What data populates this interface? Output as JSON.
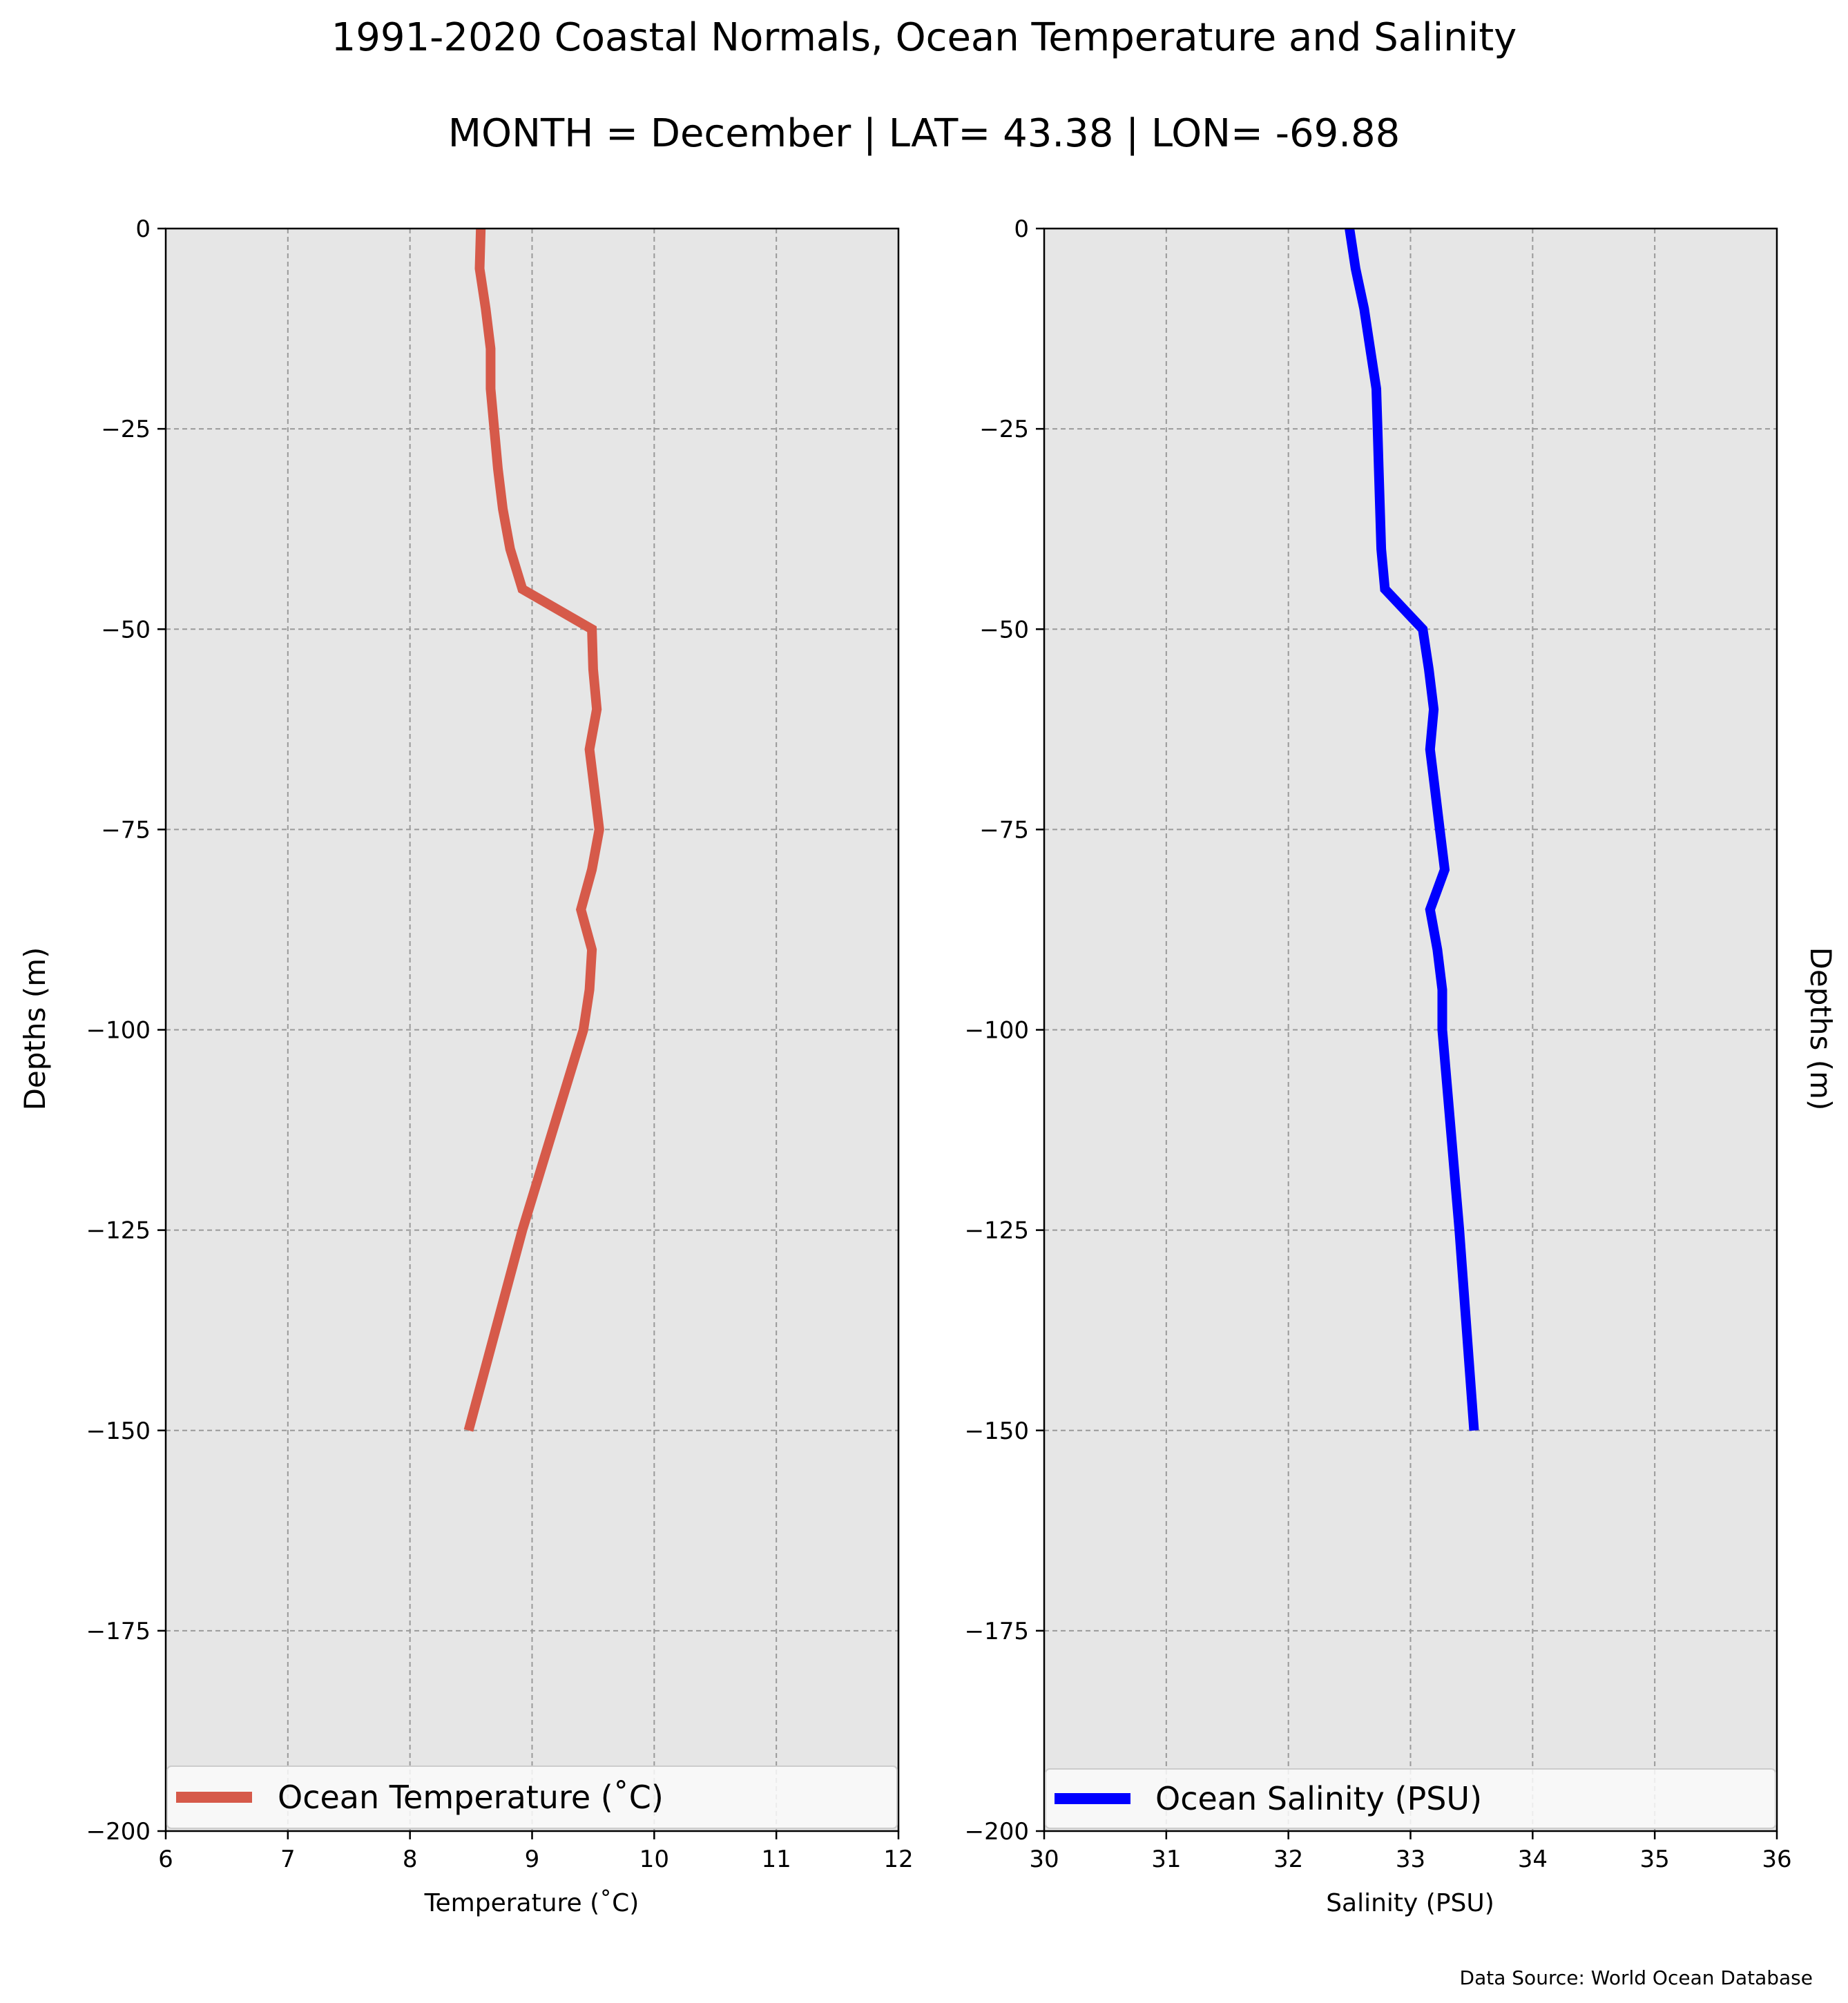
{
  "figure": {
    "title": "1991-2020 Coastal Normals, Ocean Temperature and Salinity",
    "subtitle": "MONTH = December | LAT= 43.38 | LON= -69.88",
    "source": "Data Source: World Ocean Database",
    "right_ylabel": "Depths (m)"
  },
  "chart_data": [
    {
      "type": "line",
      "xlabel": "Temperature (˚C)",
      "ylabel": "Depths (m)",
      "xlim": [
        6,
        12
      ],
      "ylim": [
        -200,
        0
      ],
      "xticks": [
        "6",
        "7",
        "8",
        "9",
        "10",
        "11",
        "12"
      ],
      "yticks": [
        "0",
        "−25",
        "−50",
        "−75",
        "−100",
        "−125",
        "−150",
        "−175",
        "−200"
      ],
      "grid": true,
      "legend": "lower-center",
      "series": [
        {
          "name": "Ocean Temperature (˚C)",
          "color": "#d65a4a",
          "points": [
            [
              8.58,
              0
            ],
            [
              8.57,
              -5
            ],
            [
              8.62,
              -10
            ],
            [
              8.66,
              -15
            ],
            [
              8.66,
              -20
            ],
            [
              8.69,
              -25
            ],
            [
              8.72,
              -30
            ],
            [
              8.76,
              -35
            ],
            [
              8.82,
              -40
            ],
            [
              8.92,
              -45
            ],
            [
              9.49,
              -50
            ],
            [
              9.5,
              -55
            ],
            [
              9.53,
              -60
            ],
            [
              9.47,
              -65
            ],
            [
              9.51,
              -70
            ],
            [
              9.55,
              -75
            ],
            [
              9.49,
              -80
            ],
            [
              9.4,
              -85
            ],
            [
              9.49,
              -90
            ],
            [
              9.47,
              -95
            ],
            [
              9.42,
              -100
            ],
            [
              8.92,
              -125
            ],
            [
              8.48,
              -150
            ]
          ]
        }
      ]
    },
    {
      "type": "line",
      "xlabel": "Salinity (PSU)",
      "ylabel": "",
      "xlim": [
        30,
        36
      ],
      "ylim": [
        -200,
        0
      ],
      "xticks": [
        "30",
        "31",
        "32",
        "33",
        "34",
        "35",
        "36"
      ],
      "yticks": [
        "0",
        "−25",
        "−50",
        "−75",
        "−100",
        "−125",
        "−150",
        "−175",
        "−200"
      ],
      "grid": true,
      "legend": "lower-center",
      "series": [
        {
          "name": "Ocean Salinity (PSU)",
          "color": "#0000ff",
          "points": [
            [
              32.5,
              0
            ],
            [
              32.55,
              -5
            ],
            [
              32.62,
              -10
            ],
            [
              32.67,
              -15
            ],
            [
              32.72,
              -20
            ],
            [
              32.73,
              -25
            ],
            [
              32.74,
              -30
            ],
            [
              32.75,
              -35
            ],
            [
              32.76,
              -40
            ],
            [
              32.79,
              -45
            ],
            [
              33.1,
              -50
            ],
            [
              33.15,
              -55
            ],
            [
              33.19,
              -60
            ],
            [
              33.16,
              -65
            ],
            [
              33.2,
              -70
            ],
            [
              33.24,
              -75
            ],
            [
              33.28,
              -80
            ],
            [
              33.16,
              -85
            ],
            [
              33.22,
              -90
            ],
            [
              33.26,
              -95
            ],
            [
              33.26,
              -100
            ],
            [
              33.4,
              -125
            ],
            [
              33.52,
              -150
            ]
          ]
        }
      ]
    }
  ]
}
